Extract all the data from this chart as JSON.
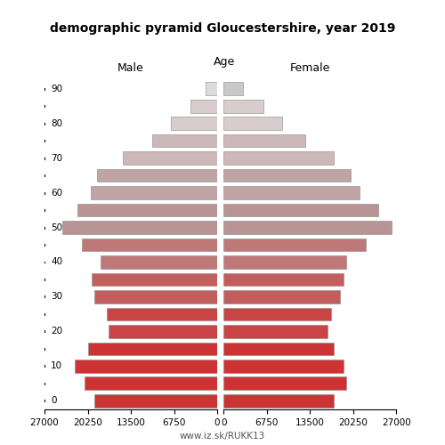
{
  "title": "demographic pyramid Gloucestershire, year 2019",
  "male_label": "Male",
  "female_label": "Female",
  "age_label": "Age",
  "footer": "www.iz.sk/RUKK13",
  "age_ticks": [
    0,
    5,
    10,
    15,
    20,
    25,
    30,
    35,
    40,
    45,
    50,
    55,
    60,
    65,
    70,
    75,
    80,
    85,
    90
  ],
  "age_tick_labels": [
    "0",
    "",
    "10",
    "",
    "20",
    "",
    "30",
    "",
    "40",
    "",
    "50",
    "",
    "60",
    "",
    "70",
    "",
    "80",
    "",
    "90"
  ],
  "male_values": [
    19200,
    20800,
    22300,
    20200,
    17000,
    17200,
    19200,
    19600,
    18200,
    21200,
    24200,
    21800,
    19800,
    18800,
    14800,
    10200,
    7200,
    4200,
    1800
  ],
  "female_values": [
    17200,
    19200,
    18800,
    17200,
    16200,
    16800,
    18200,
    18800,
    19200,
    22200,
    26200,
    24200,
    21200,
    19800,
    17200,
    12800,
    9200,
    6200,
    3000
  ],
  "male_colors": [
    "#cc3333",
    "#cc3333",
    "#cc3333",
    "#cc3333",
    "#c94444",
    "#c94444",
    "#c45e5e",
    "#c45e5e",
    "#be7878",
    "#be7878",
    "#b89494",
    "#b89494",
    "#c0a4a4",
    "#c0a4a4",
    "#ccb8b8",
    "#ccb8b8",
    "#d8cccc",
    "#d8cccc",
    "#dcdcdc"
  ],
  "female_colors": [
    "#cc3333",
    "#cc3333",
    "#cc3333",
    "#cc3333",
    "#c94444",
    "#c94444",
    "#c45e5e",
    "#c45e5e",
    "#be7878",
    "#be7878",
    "#b89494",
    "#b89494",
    "#c0a4a4",
    "#c0a4a4",
    "#ccb8b8",
    "#ccb8b8",
    "#d8cccc",
    "#d8cccc",
    "#c8c8c8"
  ],
  "xlim": 27000,
  "xticks_left": [
    27000,
    20250,
    13500,
    6750,
    0
  ],
  "xticks_right": [
    0,
    6750,
    13500,
    20250,
    27000
  ],
  "xtick_labels": [
    "27000",
    "20250",
    "13500",
    "6750",
    "0"
  ],
  "bar_height": 0.75,
  "background_color": "#ffffff",
  "edge_color": "#888888",
  "edge_linewidth": 0.4
}
